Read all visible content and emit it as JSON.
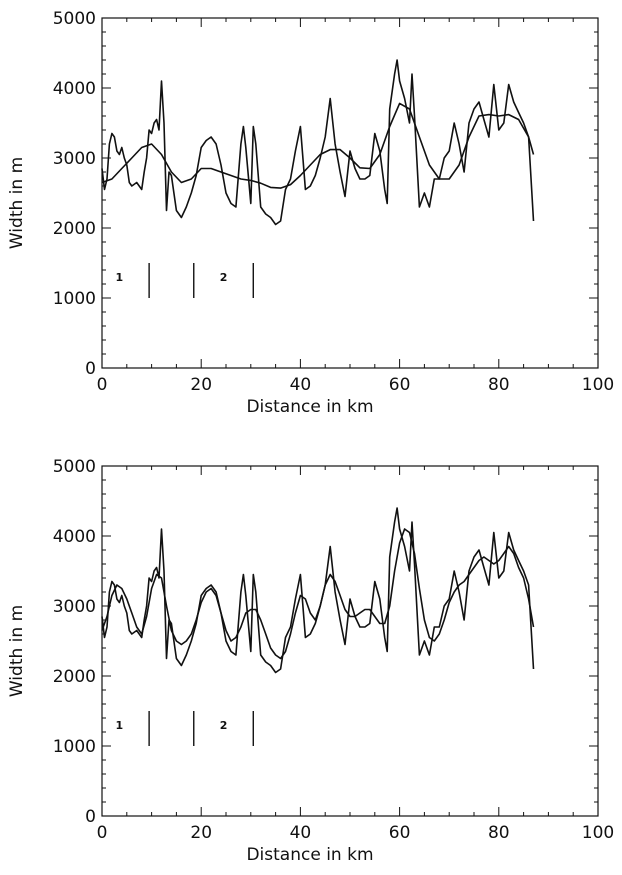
{
  "chart_data": [
    {
      "type": "line",
      "title": "",
      "xlabel": "Distance in km",
      "ylabel": "Width in m",
      "xlim": [
        0,
        100
      ],
      "ylim": [
        0,
        5000
      ],
      "xticks": [
        0,
        20,
        40,
        60,
        80,
        100
      ],
      "yticks": [
        0,
        1000,
        2000,
        3000,
        4000,
        5000
      ],
      "xtick_labels": [
        "0",
        "20",
        "40",
        "60",
        "80",
        "100"
      ],
      "ytick_labels": [
        "0",
        "1000",
        "2000",
        "3000",
        "4000",
        "5000"
      ],
      "grid": false,
      "series": [
        {
          "role": "measured",
          "x": [
            0,
            0.5,
            1,
            1.5,
            2,
            2.5,
            3,
            3.5,
            4,
            4.5,
            5,
            5.5,
            6,
            7,
            8,
            8.5,
            9,
            9.5,
            10,
            10.5,
            11,
            11.5,
            12,
            12.5,
            13,
            13.5,
            14,
            15,
            16,
            17,
            18,
            19,
            20,
            21,
            22,
            23,
            24,
            25,
            26,
            27,
            28,
            28.5,
            29,
            30,
            30.5,
            31,
            32,
            33,
            34,
            35,
            36,
            37,
            38,
            39,
            40,
            41,
            42,
            43,
            44,
            45,
            46,
            47,
            48,
            49,
            50,
            51,
            52,
            53,
            54,
            55,
            56,
            57,
            57.5,
            58,
            59,
            59.5,
            60,
            61,
            62,
            62.5,
            63,
            64,
            65,
            66,
            67,
            68,
            69,
            70,
            71,
            72,
            73,
            74,
            75,
            76,
            77,
            78,
            79,
            80,
            81,
            82,
            83,
            84,
            85,
            86,
            87
          ],
          "y": [
            2850,
            2550,
            2700,
            3200,
            3350,
            3300,
            3100,
            3050,
            3150,
            3000,
            2900,
            2650,
            2600,
            2650,
            2550,
            2800,
            3000,
            3400,
            3350,
            3500,
            3550,
            3400,
            4100,
            3500,
            2250,
            2800,
            2750,
            2250,
            2150,
            2300,
            2500,
            2750,
            3150,
            3250,
            3300,
            3200,
            2900,
            2500,
            2350,
            2300,
            3200,
            3450,
            3150,
            2350,
            3450,
            3200,
            2300,
            2200,
            2150,
            2050,
            2100,
            2550,
            2700,
            3100,
            3450,
            2550,
            2600,
            2750,
            3000,
            3300,
            3850,
            3200,
            2800,
            2450,
            3100,
            2850,
            2700,
            2700,
            2750,
            3350,
            3100,
            2550,
            2350,
            3700,
            4200,
            4400,
            4100,
            3850,
            3500,
            4200,
            3600,
            2300,
            2500,
            2300,
            2700,
            2700,
            3000,
            3100,
            3500,
            3200,
            2800,
            3500,
            3700,
            3800,
            3550,
            3300,
            4050,
            3400,
            3500,
            4050,
            3800,
            3650,
            3500,
            3300,
            2100
          ]
        },
        {
          "role": "smoothed",
          "x": [
            0,
            2,
            4,
            6,
            8,
            10,
            12,
            14,
            16,
            18,
            20,
            22,
            24,
            26,
            28,
            30,
            32,
            34,
            36,
            38,
            40,
            42,
            44,
            46,
            48,
            50,
            52,
            54,
            56,
            58,
            60,
            62,
            64,
            66,
            68,
            70,
            72,
            74,
            76,
            78,
            80,
            82,
            84,
            86,
            87
          ],
          "y": [
            2650,
            2700,
            2850,
            3000,
            3150,
            3200,
            3050,
            2800,
            2650,
            2700,
            2850,
            2850,
            2800,
            2750,
            2700,
            2680,
            2640,
            2580,
            2570,
            2620,
            2750,
            2900,
            3050,
            3120,
            3120,
            3000,
            2860,
            2850,
            3050,
            3450,
            3780,
            3700,
            3300,
            2900,
            2700,
            2700,
            2900,
            3300,
            3600,
            3620,
            3600,
            3620,
            3550,
            3300,
            3050
          ]
        }
      ],
      "markers_x": [
        9.5,
        18.5,
        30.5
      ],
      "marker_yrange": [
        1000,
        1500
      ],
      "zone_labels": [
        {
          "text": "1",
          "x": 3.5,
          "y": 1300
        },
        {
          "text": "2",
          "x": 24.5,
          "y": 1300
        }
      ]
    },
    {
      "type": "line",
      "title": "",
      "xlabel": "Distance in km",
      "ylabel": "Width in m",
      "xlim": [
        0,
        100
      ],
      "ylim": [
        0,
        5000
      ],
      "xticks": [
        0,
        20,
        40,
        60,
        80,
        100
      ],
      "yticks": [
        0,
        1000,
        2000,
        3000,
        4000,
        5000
      ],
      "xtick_labels": [
        "0",
        "20",
        "40",
        "60",
        "80",
        "100"
      ],
      "ytick_labels": [
        "0",
        "1000",
        "2000",
        "3000",
        "4000",
        "5000"
      ],
      "grid": false,
      "series": [
        {
          "role": "measured",
          "x": [
            0,
            0.5,
            1,
            1.5,
            2,
            2.5,
            3,
            3.5,
            4,
            4.5,
            5,
            5.5,
            6,
            7,
            8,
            8.5,
            9,
            9.5,
            10,
            10.5,
            11,
            11.5,
            12,
            12.5,
            13,
            13.5,
            14,
            15,
            16,
            17,
            18,
            19,
            20,
            21,
            22,
            23,
            24,
            25,
            26,
            27,
            28,
            28.5,
            29,
            30,
            30.5,
            31,
            32,
            33,
            34,
            35,
            36,
            37,
            38,
            39,
            40,
            41,
            42,
            43,
            44,
            45,
            46,
            47,
            48,
            49,
            50,
            51,
            52,
            53,
            54,
            55,
            56,
            57,
            57.5,
            58,
            59,
            59.5,
            60,
            61,
            62,
            62.5,
            63,
            64,
            65,
            66,
            67,
            68,
            69,
            70,
            71,
            72,
            73,
            74,
            75,
            76,
            77,
            78,
            79,
            80,
            81,
            82,
            83,
            84,
            85,
            86,
            87
          ],
          "y": [
            2850,
            2550,
            2700,
            3200,
            3350,
            3300,
            3100,
            3050,
            3150,
            3000,
            2900,
            2650,
            2600,
            2650,
            2550,
            2800,
            3000,
            3400,
            3350,
            3500,
            3550,
            3400,
            4100,
            3500,
            2250,
            2800,
            2750,
            2250,
            2150,
            2300,
            2500,
            2750,
            3150,
            3250,
            3300,
            3200,
            2900,
            2500,
            2350,
            2300,
            3200,
            3450,
            3150,
            2350,
            3450,
            3200,
            2300,
            2200,
            2150,
            2050,
            2100,
            2550,
            2700,
            3100,
            3450,
            2550,
            2600,
            2750,
            3000,
            3300,
            3850,
            3200,
            2800,
            2450,
            3100,
            2850,
            2700,
            2700,
            2750,
            3350,
            3100,
            2550,
            2350,
            3700,
            4200,
            4400,
            4100,
            3850,
            3500,
            4200,
            3600,
            2300,
            2500,
            2300,
            2700,
            2700,
            3000,
            3100,
            3500,
            3200,
            2800,
            3500,
            3700,
            3800,
            3550,
            3300,
            4050,
            3400,
            3500,
            4050,
            3800,
            3650,
            3500,
            3300,
            2100
          ]
        },
        {
          "role": "smoothed",
          "x": [
            0,
            1,
            2,
            3,
            4,
            5,
            6,
            7,
            8,
            9,
            10,
            11,
            12,
            13,
            14,
            15,
            16,
            17,
            18,
            19,
            20,
            21,
            22,
            23,
            24,
            25,
            26,
            27,
            28,
            29,
            30,
            31,
            32,
            33,
            34,
            35,
            36,
            37,
            38,
            39,
            40,
            41,
            42,
            43,
            44,
            45,
            46,
            47,
            48,
            49,
            50,
            51,
            52,
            53,
            54,
            55,
            56,
            57,
            58,
            59,
            60,
            61,
            62,
            63,
            64,
            65,
            66,
            67,
            68,
            69,
            70,
            71,
            72,
            73,
            74,
            75,
            76,
            77,
            78,
            79,
            80,
            81,
            82,
            83,
            84,
            85,
            86,
            87
          ],
          "y": [
            2650,
            2850,
            3150,
            3300,
            3250,
            3100,
            2900,
            2700,
            2600,
            2850,
            3250,
            3450,
            3400,
            3000,
            2650,
            2500,
            2450,
            2500,
            2600,
            2800,
            3050,
            3200,
            3250,
            3150,
            2900,
            2650,
            2500,
            2550,
            2700,
            2900,
            2950,
            2950,
            2800,
            2600,
            2400,
            2300,
            2250,
            2350,
            2600,
            2900,
            3150,
            3100,
            2900,
            2800,
            3000,
            3300,
            3450,
            3350,
            3150,
            2950,
            2850,
            2850,
            2900,
            2950,
            2950,
            2850,
            2750,
            2750,
            3000,
            3500,
            3900,
            4100,
            4050,
            3750,
            3250,
            2800,
            2550,
            2500,
            2600,
            2800,
            3050,
            3200,
            3300,
            3350,
            3450,
            3550,
            3650,
            3700,
            3650,
            3600,
            3650,
            3750,
            3850,
            3750,
            3550,
            3400,
            3100,
            2700
          ]
        }
      ],
      "markers_x": [
        9.5,
        18.5,
        30.5
      ],
      "marker_yrange": [
        1000,
        1500
      ],
      "zone_labels": [
        {
          "text": "1",
          "x": 3.5,
          "y": 1300
        },
        {
          "text": "2",
          "x": 24.5,
          "y": 1300
        }
      ]
    }
  ]
}
